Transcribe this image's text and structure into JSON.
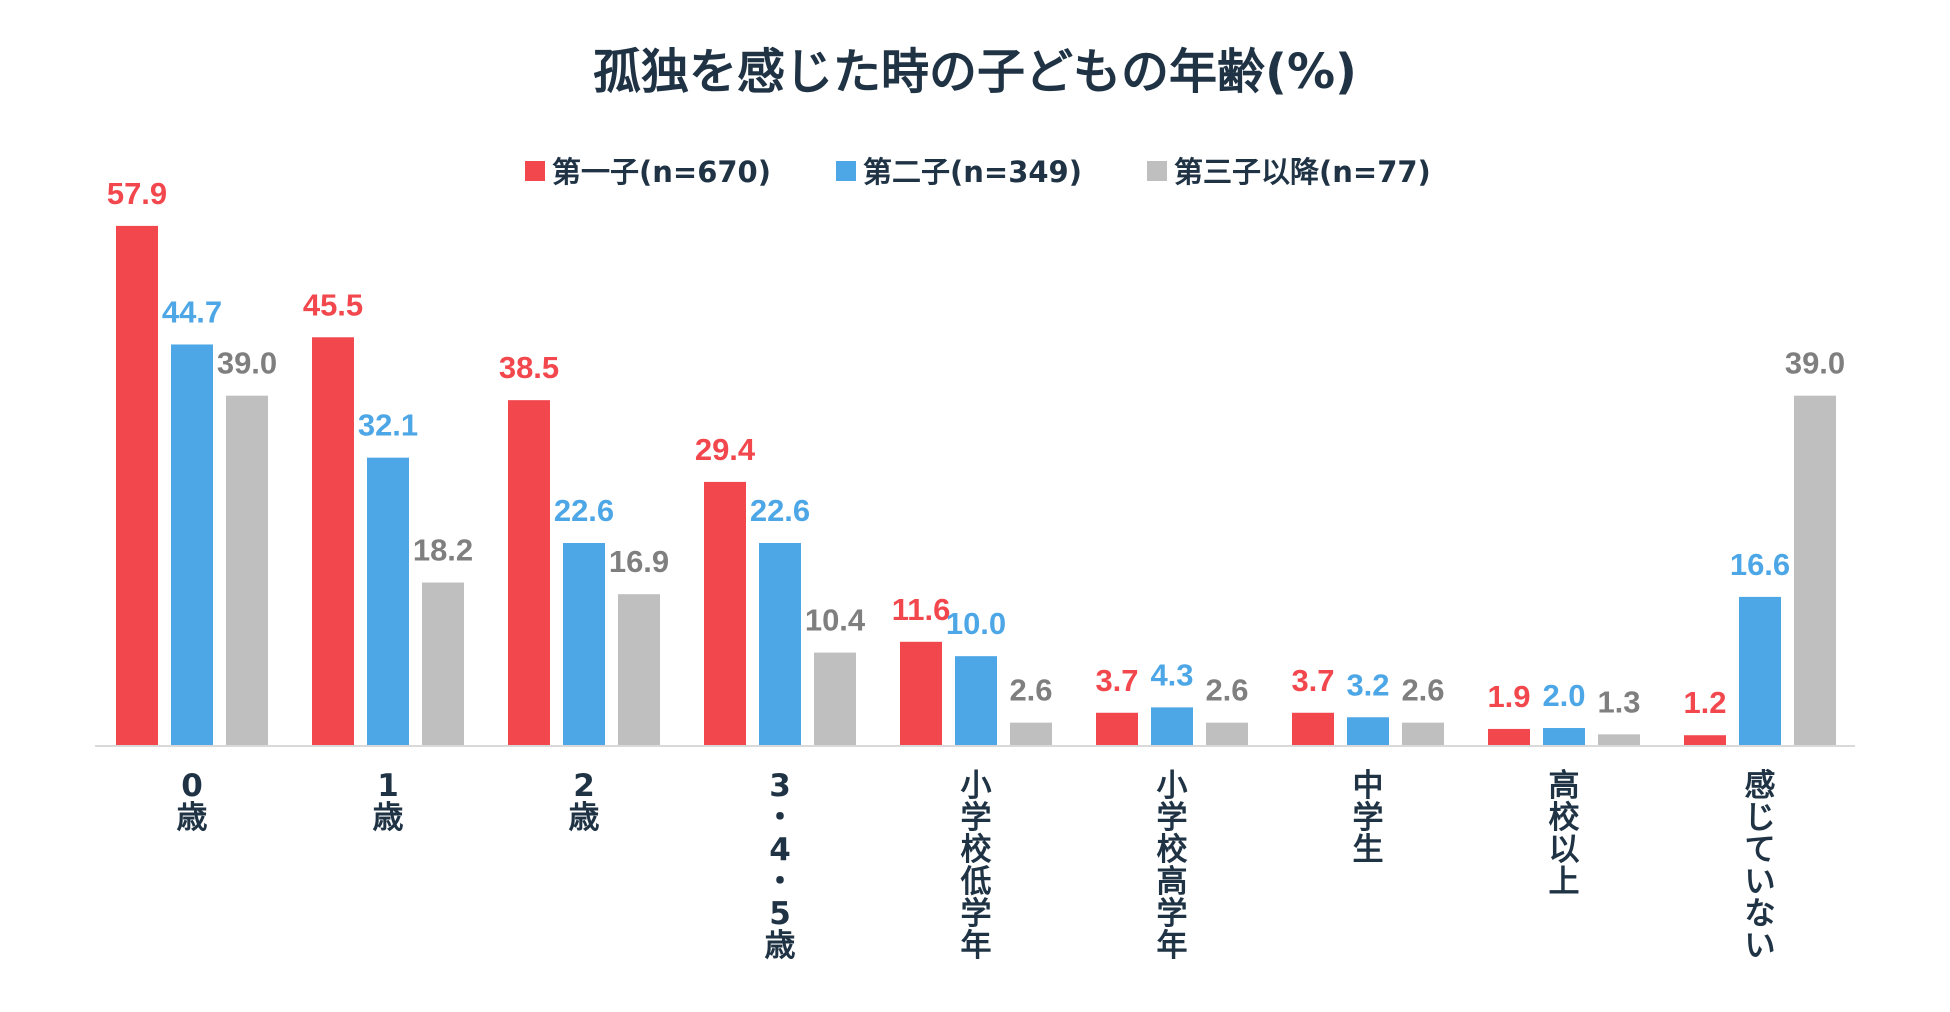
{
  "chart_data": {
    "type": "bar",
    "title": "孤独を感じた時の子どもの年齢(%)",
    "categories": [
      "0歳",
      "1歳",
      "2歳",
      "3・4・5歳",
      "小学校低学年",
      "小学校高学年",
      "中学生",
      "高校以上",
      "感じていない"
    ],
    "series": [
      {
        "name": "第一子(n=670)",
        "color": "#f2474d",
        "values": [
          57.9,
          45.5,
          38.5,
          29.4,
          11.6,
          3.7,
          3.7,
          1.9,
          1.2
        ],
        "labels": [
          "57.9",
          "45.5",
          "38.5",
          "29.4",
          "11.6",
          "3.7",
          "3.7",
          "1.9",
          "1.2"
        ]
      },
      {
        "name": "第二子(n=349)",
        "color": "#4da6e6",
        "values": [
          44.7,
          32.1,
          22.6,
          22.6,
          10.0,
          4.3,
          3.2,
          2.0,
          16.6
        ],
        "labels": [
          "44.7",
          "32.1",
          "22.6",
          "22.6",
          "10.0",
          "4.3",
          "3.2",
          "2.0",
          "16.6"
        ]
      },
      {
        "name": "第三子以降(n=77)",
        "color": "#bfbfbf",
        "label_color": "#7f7f7f",
        "values": [
          39.0,
          18.2,
          16.9,
          10.4,
          2.6,
          2.6,
          2.6,
          1.3,
          39.0
        ],
        "labels": [
          "39.0",
          "18.2",
          "16.9",
          "10.4",
          "2.6",
          "2.6",
          "2.6",
          "1.3",
          "39.0"
        ]
      }
    ],
    "xlabel": "",
    "ylabel": "",
    "ylim": [
      0,
      60
    ],
    "grid": false,
    "legend": "top-center"
  }
}
